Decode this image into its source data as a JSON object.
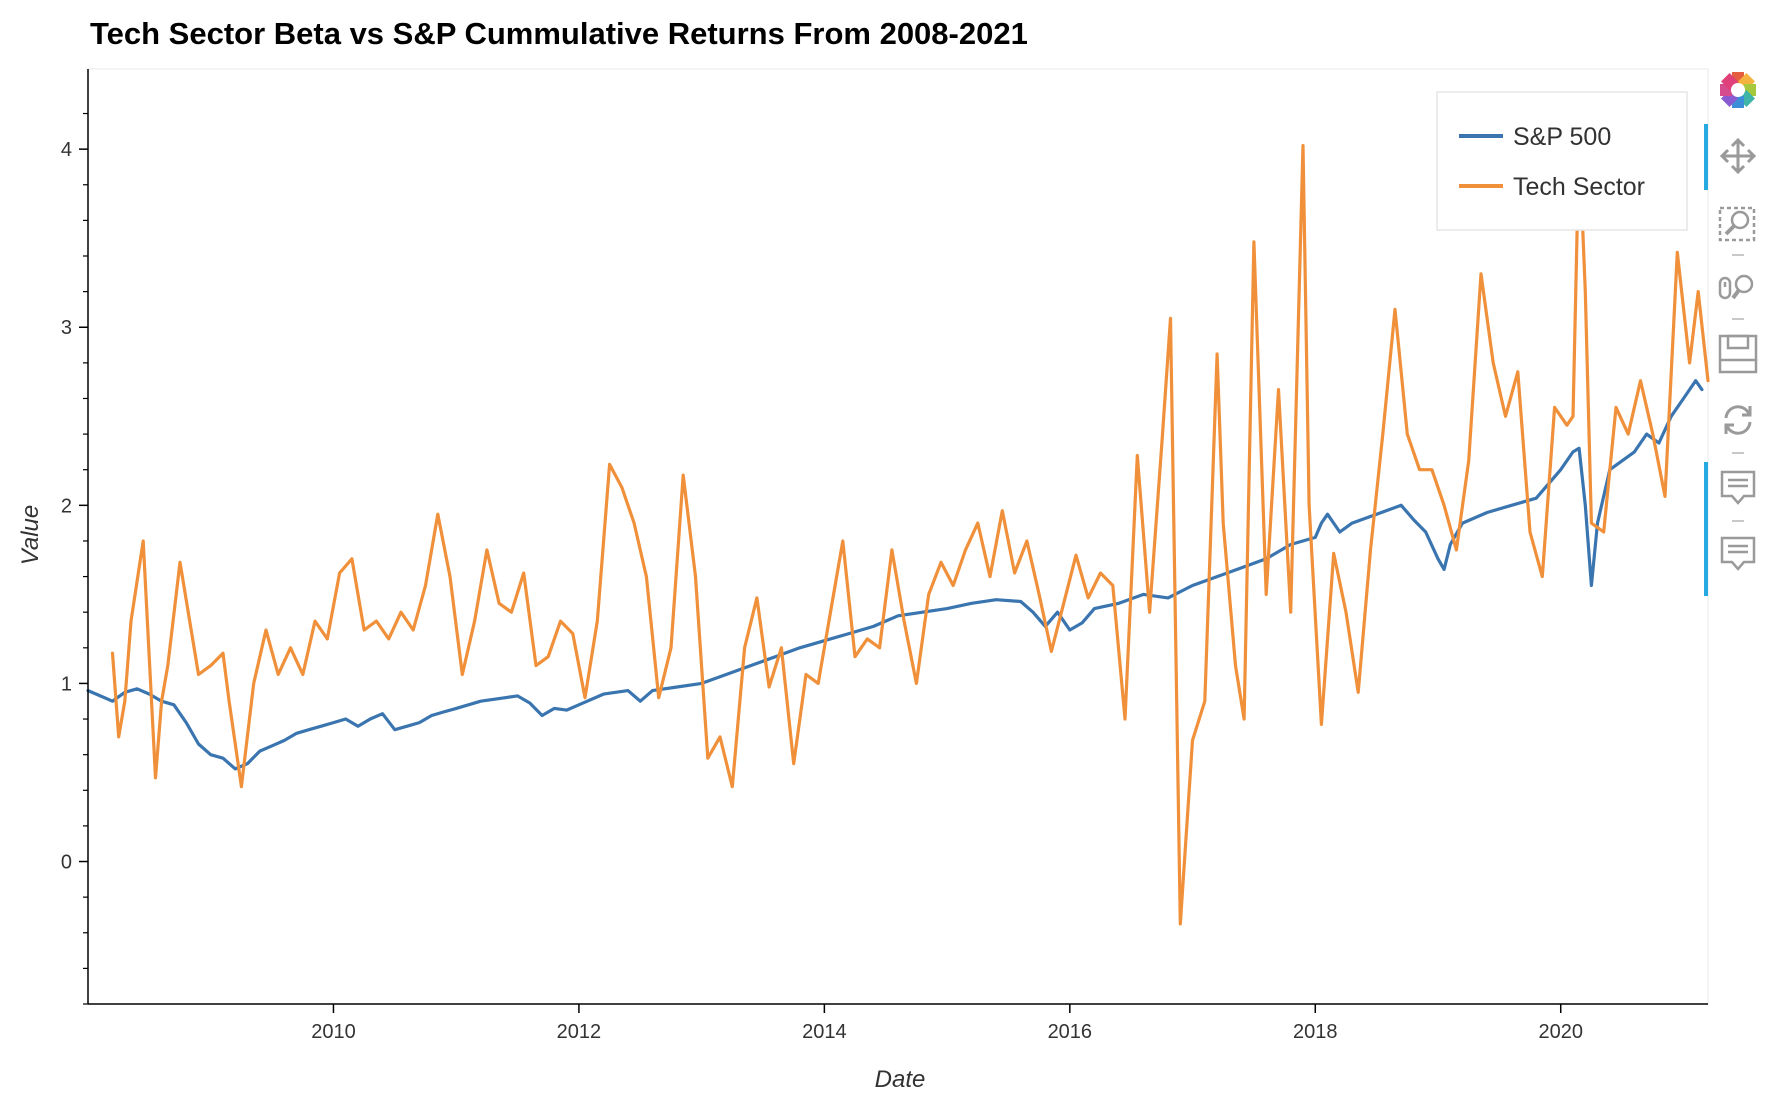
{
  "chart_data": {
    "type": "line",
    "title": "Tech Sector Beta vs S&P Cummulative Returns From 2008-2021",
    "xlabel": "Date",
    "ylabel": "Value",
    "xlim": [
      2008.0,
      2021.2
    ],
    "ylim": [
      -0.8,
      4.45
    ],
    "x_ticks": [
      "2010",
      "2012",
      "2014",
      "2016",
      "2018",
      "2020"
    ],
    "y_ticks": [
      "0",
      "1",
      "2",
      "3",
      "4"
    ],
    "legend_position": "top-right",
    "series": [
      {
        "name": "S&P 500",
        "color": "#3a75b0",
        "x": [
          2008.0,
          2008.1,
          2008.2,
          2008.3,
          2008.4,
          2008.5,
          2008.6,
          2008.7,
          2008.8,
          2008.9,
          2009.0,
          2009.1,
          2009.2,
          2009.3,
          2009.4,
          2009.5,
          2009.6,
          2009.7,
          2009.8,
          2009.9,
          2010.0,
          2010.1,
          2010.2,
          2010.3,
          2010.4,
          2010.5,
          2010.6,
          2010.7,
          2010.8,
          2010.9,
          2011.0,
          2011.2,
          2011.4,
          2011.5,
          2011.6,
          2011.7,
          2011.8,
          2011.9,
          2012.0,
          2012.2,
          2012.4,
          2012.5,
          2012.6,
          2012.8,
          2013.0,
          2013.2,
          2013.4,
          2013.6,
          2013.8,
          2014.0,
          2014.2,
          2014.4,
          2014.6,
          2014.8,
          2015.0,
          2015.2,
          2015.4,
          2015.6,
          2015.7,
          2015.8,
          2015.9,
          2016.0,
          2016.1,
          2016.2,
          2016.4,
          2016.6,
          2016.8,
          2017.0,
          2017.2,
          2017.4,
          2017.6,
          2017.8,
          2018.0,
          2018.05,
          2018.1,
          2018.2,
          2018.3,
          2018.5,
          2018.7,
          2018.8,
          2018.9,
          2019.0,
          2019.05,
          2019.1,
          2019.2,
          2019.4,
          2019.6,
          2019.8,
          2020.0,
          2020.1,
          2020.15,
          2020.2,
          2020.25,
          2020.3,
          2020.4,
          2020.5,
          2020.6,
          2020.7,
          2020.8,
          2020.9,
          2021.0,
          2021.1,
          2021.15
        ],
        "y": [
          0.96,
          0.93,
          0.9,
          0.95,
          0.97,
          0.94,
          0.9,
          0.88,
          0.78,
          0.66,
          0.6,
          0.58,
          0.52,
          0.55,
          0.62,
          0.65,
          0.68,
          0.72,
          0.74,
          0.76,
          0.78,
          0.8,
          0.76,
          0.8,
          0.83,
          0.74,
          0.76,
          0.78,
          0.82,
          0.84,
          0.86,
          0.9,
          0.92,
          0.93,
          0.89,
          0.82,
          0.86,
          0.85,
          0.88,
          0.94,
          0.96,
          0.9,
          0.96,
          0.98,
          1.0,
          1.05,
          1.1,
          1.15,
          1.2,
          1.24,
          1.28,
          1.32,
          1.38,
          1.4,
          1.42,
          1.45,
          1.47,
          1.46,
          1.4,
          1.32,
          1.4,
          1.3,
          1.34,
          1.42,
          1.45,
          1.5,
          1.48,
          1.55,
          1.6,
          1.65,
          1.7,
          1.78,
          1.82,
          1.9,
          1.95,
          1.85,
          1.9,
          1.95,
          2.0,
          1.92,
          1.85,
          1.7,
          1.64,
          1.78,
          1.9,
          1.96,
          2.0,
          2.04,
          2.2,
          2.3,
          2.32,
          2.0,
          1.55,
          1.9,
          2.2,
          2.25,
          2.3,
          2.4,
          2.35,
          2.5,
          2.6,
          2.7,
          2.65
        ]
      },
      {
        "name": "Tech Sector",
        "color": "#f0903a",
        "x": [
          2008.2,
          2008.25,
          2008.3,
          2008.35,
          2008.45,
          2008.55,
          2008.6,
          2008.65,
          2008.75,
          2008.9,
          2009.0,
          2009.1,
          2009.15,
          2009.25,
          2009.35,
          2009.45,
          2009.55,
          2009.65,
          2009.75,
          2009.85,
          2009.95,
          2010.05,
          2010.15,
          2010.25,
          2010.35,
          2010.45,
          2010.55,
          2010.65,
          2010.75,
          2010.85,
          2010.95,
          2011.05,
          2011.15,
          2011.25,
          2011.35,
          2011.45,
          2011.55,
          2011.65,
          2011.75,
          2011.85,
          2011.95,
          2012.05,
          2012.15,
          2012.25,
          2012.35,
          2012.45,
          2012.55,
          2012.65,
          2012.75,
          2012.85,
          2012.95,
          2013.05,
          2013.15,
          2013.25,
          2013.35,
          2013.45,
          2013.55,
          2013.65,
          2013.75,
          2013.85,
          2013.95,
          2014.05,
          2014.15,
          2014.25,
          2014.35,
          2014.45,
          2014.55,
          2014.65,
          2014.75,
          2014.85,
          2014.95,
          2015.05,
          2015.15,
          2015.25,
          2015.35,
          2015.45,
          2015.55,
          2015.65,
          2015.75,
          2015.85,
          2015.95,
          2016.05,
          2016.15,
          2016.25,
          2016.35,
          2016.45,
          2016.55,
          2016.65,
          2016.75,
          2016.82,
          2016.9,
          2017.0,
          2017.1,
          2017.2,
          2017.25,
          2017.35,
          2017.42,
          2017.5,
          2017.6,
          2017.7,
          2017.8,
          2017.9,
          2017.95,
          2018.05,
          2018.15,
          2018.25,
          2018.35,
          2018.45,
          2018.55,
          2018.65,
          2018.75,
          2018.85,
          2018.95,
          2019.05,
          2019.15,
          2019.25,
          2019.35,
          2019.45,
          2019.55,
          2019.65,
          2019.75,
          2019.85,
          2019.95,
          2020.05,
          2020.1,
          2020.15,
          2020.2,
          2020.25,
          2020.35,
          2020.45,
          2020.55,
          2020.65,
          2020.75,
          2020.85,
          2020.95,
          2021.05,
          2021.12,
          2021.2
        ],
        "y": [
          1.17,
          0.7,
          0.9,
          1.35,
          1.8,
          0.47,
          0.9,
          1.1,
          1.68,
          1.05,
          1.1,
          1.17,
          0.9,
          0.42,
          1.0,
          1.3,
          1.05,
          1.2,
          1.05,
          1.35,
          1.25,
          1.62,
          1.7,
          1.3,
          1.35,
          1.25,
          1.4,
          1.3,
          1.55,
          1.95,
          1.6,
          1.05,
          1.35,
          1.75,
          1.45,
          1.4,
          1.62,
          1.1,
          1.15,
          1.35,
          1.28,
          0.92,
          1.35,
          2.23,
          2.1,
          1.9,
          1.6,
          0.92,
          1.2,
          2.17,
          1.6,
          0.58,
          0.7,
          0.42,
          1.2,
          1.48,
          0.98,
          1.2,
          0.55,
          1.05,
          1.0,
          1.4,
          1.8,
          1.15,
          1.25,
          1.2,
          1.75,
          1.35,
          1.0,
          1.5,
          1.68,
          1.55,
          1.75,
          1.9,
          1.6,
          1.97,
          1.62,
          1.8,
          1.5,
          1.18,
          1.45,
          1.72,
          1.48,
          1.62,
          1.55,
          0.8,
          2.28,
          1.4,
          2.35,
          3.05,
          -0.35,
          0.68,
          0.9,
          2.85,
          1.9,
          1.1,
          0.8,
          3.48,
          1.5,
          2.65,
          1.4,
          4.02,
          2.0,
          0.77,
          1.73,
          1.4,
          0.95,
          1.75,
          2.4,
          3.1,
          2.4,
          2.2,
          2.2,
          2.0,
          1.75,
          2.25,
          3.3,
          2.8,
          2.5,
          2.75,
          1.85,
          1.6,
          2.55,
          2.45,
          2.5,
          4.05,
          3.2,
          1.9,
          1.85,
          2.55,
          2.4,
          2.7,
          2.4,
          2.05,
          3.42,
          2.8,
          3.2,
          2.7
        ]
      }
    ]
  },
  "legend": {
    "items": [
      {
        "label": "S&P 500",
        "color": "#3a75b0"
      },
      {
        "label": "Tech Sector",
        "color": "#f0903a"
      }
    ]
  },
  "toolbar": {
    "tools": [
      {
        "icon": "bokeh-logo-icon"
      },
      {
        "icon": "pan-icon"
      },
      {
        "icon": "box-zoom-icon"
      },
      {
        "icon": "wheel-zoom-icon"
      },
      {
        "icon": "save-icon"
      },
      {
        "icon": "reset-icon"
      },
      {
        "icon": "hover-icon"
      },
      {
        "icon": "hover-icon"
      }
    ]
  }
}
